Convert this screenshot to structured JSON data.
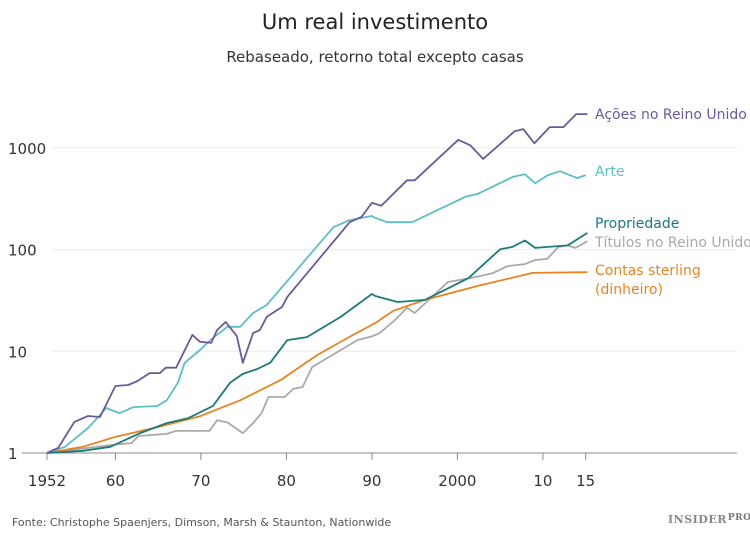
{
  "chart_data": {
    "type": "line",
    "title": "Um real investimento",
    "subtitle": "Rebaseado, retorno total excepto casas",
    "xlabel": "",
    "ylabel": "",
    "yscale": "log",
    "xlim": [
      1952,
      2015
    ],
    "ylim": [
      1,
      3000
    ],
    "grid": true,
    "x_ticks": [
      1952,
      1960,
      1970,
      1980,
      1990,
      2000,
      2010,
      2015
    ],
    "x_tick_labels": [
      "1952",
      "60",
      "70",
      "80",
      "90",
      "2000",
      "10",
      "15"
    ],
    "y_ticks": [
      1,
      10,
      100,
      1000
    ],
    "y_tick_labels": [
      "1",
      "10",
      "100",
      "1000"
    ],
    "legend_placement": "direct labels at right end of lines",
    "series": [
      {
        "name": "Ações no Reino Unido",
        "color": "#6a5a9c",
        "points": [
          [
            1952,
            1
          ],
          [
            1953.3,
            1.12
          ],
          [
            1955.2,
            2.02
          ],
          [
            1956.8,
            2.31
          ],
          [
            1958.2,
            2.26
          ],
          [
            1960,
            4.56
          ],
          [
            1961.5,
            4.66
          ],
          [
            1962.6,
            5.1
          ],
          [
            1964,
            6.1
          ],
          [
            1965.2,
            6.1
          ],
          [
            1965.9,
            6.9
          ],
          [
            1967.1,
            6.9
          ],
          [
            1969,
            14.5
          ],
          [
            1969.9,
            12.4
          ],
          [
            1971.2,
            12.1
          ],
          [
            1971.9,
            16.2
          ],
          [
            1972.9,
            19.4
          ],
          [
            1974.2,
            14.1
          ],
          [
            1974.9,
            7.7
          ],
          [
            1976.1,
            15.1
          ],
          [
            1976.9,
            16.2
          ],
          [
            1977.7,
            21.8
          ],
          [
            1979.5,
            27.3
          ],
          [
            1980.1,
            34.3
          ],
          [
            1987.4,
            186
          ],
          [
            1988.8,
            210
          ],
          [
            1990,
            288
          ],
          [
            1991.1,
            270
          ],
          [
            1994.1,
            480
          ],
          [
            1995,
            480
          ],
          [
            2000.1,
            1200
          ],
          [
            2001.5,
            1060
          ],
          [
            2003,
            780
          ],
          [
            2006.7,
            1460
          ],
          [
            2007.7,
            1530
          ],
          [
            2009,
            1110
          ],
          [
            2010.8,
            1600
          ],
          [
            2012.4,
            1600
          ],
          [
            2013.9,
            2150
          ],
          [
            2015.2,
            2150
          ]
        ]
      },
      {
        "name": "Arte",
        "color": "#5cbfc5",
        "points": [
          [
            1952,
            1
          ],
          [
            1954.1,
            1.15
          ],
          [
            1956.8,
            1.76
          ],
          [
            1958.2,
            2.36
          ],
          [
            1958.9,
            2.77
          ],
          [
            1960.5,
            2.47
          ],
          [
            1962.1,
            2.83
          ],
          [
            1964.9,
            2.9
          ],
          [
            1966,
            3.3
          ],
          [
            1967.3,
            4.9
          ],
          [
            1968.1,
            7.7
          ],
          [
            1969.9,
            10.3
          ],
          [
            1971.1,
            12.9
          ],
          [
            1973.1,
            17.4
          ],
          [
            1974.6,
            17.4
          ],
          [
            1976.1,
            23.8
          ],
          [
            1977.7,
            28.5
          ],
          [
            1985.5,
            166
          ],
          [
            1987.4,
            195
          ],
          [
            1990,
            214
          ],
          [
            1990.4,
            205
          ],
          [
            1991.8,
            186
          ],
          [
            1994.7,
            186
          ],
          [
            2000.9,
            330
          ],
          [
            2002.4,
            354
          ],
          [
            2006.5,
            520
          ],
          [
            2007.9,
            550
          ],
          [
            2009.1,
            450
          ],
          [
            2010.6,
            540
          ],
          [
            2012,
            590
          ],
          [
            2014,
            505
          ],
          [
            2015,
            540
          ]
        ]
      },
      {
        "name": "Propriedade",
        "color": "#1a7b79",
        "points": [
          [
            1952,
            1
          ],
          [
            1956.2,
            1.05
          ],
          [
            1959.4,
            1.15
          ],
          [
            1962.9,
            1.57
          ],
          [
            1966,
            1.97
          ],
          [
            1968.5,
            2.2
          ],
          [
            1971.4,
            2.9
          ],
          [
            1973.4,
            4.9
          ],
          [
            1974.9,
            6.0
          ],
          [
            1976.6,
            6.7
          ],
          [
            1978.1,
            7.7
          ],
          [
            1980.1,
            12.9
          ],
          [
            1982.4,
            13.8
          ],
          [
            1986.3,
            21.7
          ],
          [
            1990,
            36.6
          ],
          [
            1990.4,
            35
          ],
          [
            1993,
            30.5
          ],
          [
            1996.2,
            32
          ],
          [
            2001.3,
            52.5
          ],
          [
            2005,
            101
          ],
          [
            2006.4,
            106
          ],
          [
            2007.9,
            123
          ],
          [
            2009.1,
            104
          ],
          [
            2012.9,
            110
          ],
          [
            2015.2,
            146
          ]
        ]
      },
      {
        "name": "Títulos no Reino Unido",
        "color": "#a9a9a9",
        "points": [
          [
            1952,
            1
          ],
          [
            1959.6,
            1.2
          ],
          [
            1961.9,
            1.25
          ],
          [
            1962.7,
            1.47
          ],
          [
            1966,
            1.54
          ],
          [
            1967.1,
            1.65
          ],
          [
            1971,
            1.65
          ],
          [
            1971.9,
            2.1
          ],
          [
            1973.1,
            2.0
          ],
          [
            1974.9,
            1.57
          ],
          [
            1976.1,
            1.97
          ],
          [
            1977.1,
            2.47
          ],
          [
            1977.9,
            3.55
          ],
          [
            1979.8,
            3.55
          ],
          [
            1980.8,
            4.27
          ],
          [
            1981.9,
            4.46
          ],
          [
            1983,
            7.0
          ],
          [
            1988.3,
            12.9
          ],
          [
            1990.1,
            14.1
          ],
          [
            1990.9,
            15.1
          ],
          [
            1992.7,
            20.3
          ],
          [
            1994.1,
            26.8
          ],
          [
            1995,
            23.8
          ],
          [
            1998.9,
            48
          ],
          [
            2002,
            53.5
          ],
          [
            2004.1,
            58.6
          ],
          [
            2005.9,
            69
          ],
          [
            2007.9,
            72
          ],
          [
            2009.1,
            79
          ],
          [
            2010.5,
            81
          ],
          [
            2011.8,
            106
          ],
          [
            2012.9,
            110
          ],
          [
            2013.8,
            104
          ],
          [
            2015.2,
            121
          ]
        ]
      },
      {
        "name": "Contas sterling (dinheiro)",
        "name_lines": [
          "Contas sterling",
          "(dinheiro)"
        ],
        "color": "#e8841f",
        "points": [
          [
            1952,
            1
          ],
          [
            1956.2,
            1.15
          ],
          [
            1960,
            1.44
          ],
          [
            1965,
            1.8
          ],
          [
            1969.9,
            2.3
          ],
          [
            1974.6,
            3.3
          ],
          [
            1979.3,
            5.2
          ],
          [
            1983.6,
            9.2
          ],
          [
            1987.8,
            14.5
          ],
          [
            1990.4,
            19
          ],
          [
            1992.5,
            25
          ],
          [
            1996.2,
            32
          ],
          [
            2002.4,
            44
          ],
          [
            2008.8,
            59
          ],
          [
            2015.2,
            60
          ]
        ]
      }
    ]
  },
  "footer": {
    "source": "Fonte: Christophe Spaenjers, Dimson, Marsh & Staunton, Nationwide",
    "logo_text": "INSIDER",
    "logo_sup": "PRO"
  }
}
